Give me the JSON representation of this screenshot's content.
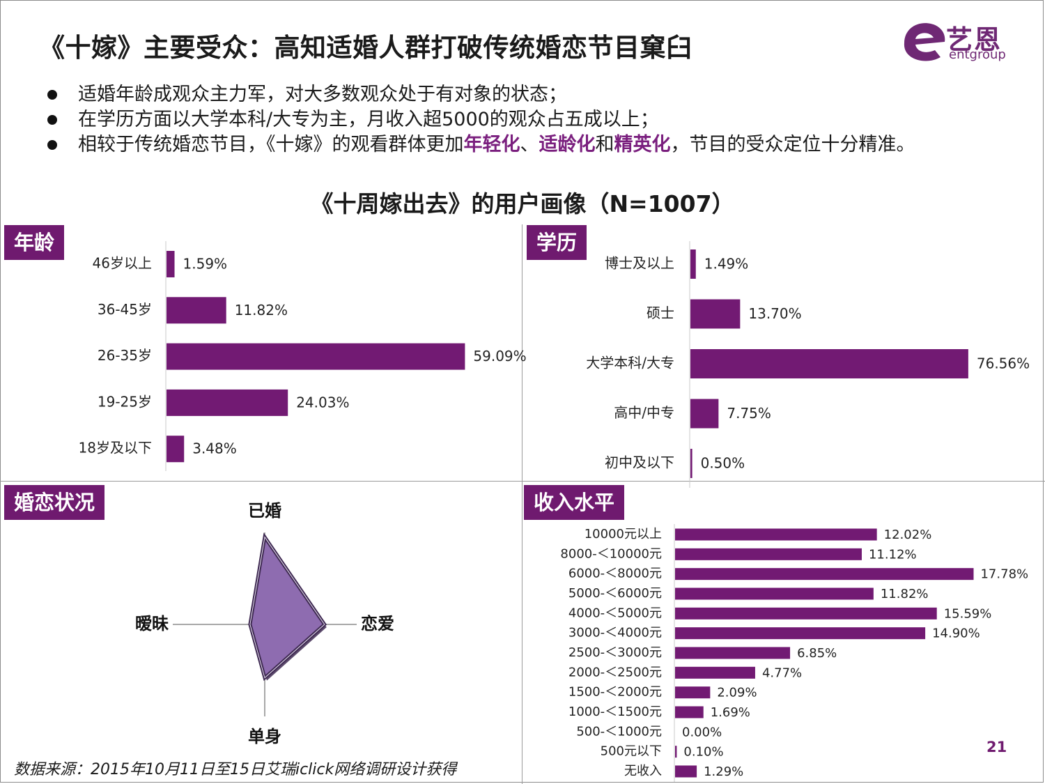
{
  "title": "《十嫁》主要受众：高知适婚人群打破传统婚恋节目窠臼",
  "logo": {
    "cn": "艺恩",
    "en": "entgroup"
  },
  "bullets": [
    {
      "parts": [
        {
          "text": "适婚年龄成观众主力军，对大多数观众处于有对象的状态；",
          "hl": false
        }
      ]
    },
    {
      "parts": [
        {
          "text": "在学历方面以大学本科/大专为主，月收入超5000的观众占五成以上；",
          "hl": false
        }
      ]
    },
    {
      "parts": [
        {
          "text": "相较于传统婚恋节目，《十嫁》的观看群体更加",
          "hl": false
        },
        {
          "text": "年轻化",
          "hl": true
        },
        {
          "text": "、",
          "hl": false
        },
        {
          "text": "适龄化",
          "hl": true
        },
        {
          "text": "和",
          "hl": false
        },
        {
          "text": "精英化",
          "hl": true
        },
        {
          "text": "，节目的受众定位十分精准。",
          "hl": false
        }
      ]
    }
  ],
  "subtitle": "《十周嫁出去》的用户画像（N=1007）",
  "colors": {
    "bar": "#721a73",
    "radar_fill": "#8e6cb0",
    "radar_edge": "#3f2a52"
  },
  "chart_data": [
    {
      "id": "age",
      "type": "bar",
      "orientation": "horizontal",
      "title": "年龄",
      "categories": [
        "46岁以上",
        "36-45岁",
        "26-35岁",
        "19-25岁",
        "18岁及以下"
      ],
      "values": [
        1.59,
        11.82,
        59.09,
        24.03,
        3.48
      ],
      "labels": [
        "1.59%",
        "11.82%",
        "59.09%",
        "24.03%",
        "3.48%"
      ],
      "unit": "%"
    },
    {
      "id": "education",
      "type": "bar",
      "orientation": "horizontal",
      "title": "学历",
      "categories": [
        "博士及以上",
        "硕士",
        "大学本科/大专",
        "高中/中专",
        "初中及以下"
      ],
      "values": [
        1.49,
        13.7,
        76.56,
        7.75,
        0.5
      ],
      "labels": [
        "1.49%",
        "13.70%",
        "76.56%",
        "7.75%",
        "0.50%"
      ],
      "unit": "%"
    },
    {
      "id": "marital",
      "type": "radar",
      "title": "婚恋状况",
      "axes": [
        "已婚",
        "恋爱",
        "单身",
        "暧昧"
      ],
      "values": [
        0.95,
        0.65,
        0.58,
        0.16
      ]
    },
    {
      "id": "income",
      "type": "bar",
      "orientation": "horizontal",
      "title": "收入水平",
      "categories": [
        "10000元以上",
        "8000-＜10000元",
        "6000-＜8000元",
        "5000-＜6000元",
        "4000-＜5000元",
        "3000-＜4000元",
        "2500-＜3000元",
        "2000-＜2500元",
        "1500-＜2000元",
        "1000-＜1500元",
        "500-＜1000元",
        "500元以下",
        "无收入"
      ],
      "values": [
        12.02,
        11.12,
        17.78,
        11.82,
        15.59,
        14.9,
        6.85,
        4.77,
        2.09,
        1.69,
        0.0,
        0.1,
        1.29
      ],
      "labels": [
        "12.02%",
        "11.12%",
        "17.78%",
        "11.82%",
        "15.59%",
        "14.90%",
        "6.85%",
        "4.77%",
        "2.09%",
        "1.69%",
        "0.00%",
        "0.10%",
        "1.29%"
      ],
      "unit": "%"
    }
  ],
  "source": "数据来源：2015年10月11日至15日艾瑞iclick网络调研设计获得",
  "page_number": "21"
}
